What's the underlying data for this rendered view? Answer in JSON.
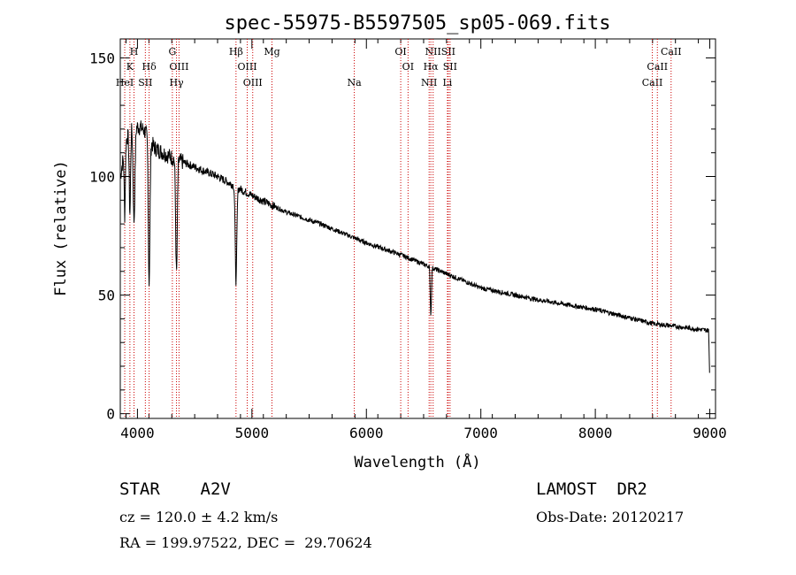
{
  "chart_data": {
    "type": "line",
    "title": "spec-55975-B5597505_sp05-069.fits",
    "xlabel": "Wavelength (Å)",
    "ylabel": "Flux (relative)",
    "xlim": [
      3850,
      9050
    ],
    "ylim": [
      -2,
      158
    ],
    "x_ticks": [
      {
        "value": 4000,
        "label": "4000"
      },
      {
        "value": 5000,
        "label": "5000"
      },
      {
        "value": 6000,
        "label": "6000"
      },
      {
        "value": 7000,
        "label": "7000"
      },
      {
        "value": 8000,
        "label": "8000"
      },
      {
        "value": 9000,
        "label": "9000"
      }
    ],
    "y_ticks": [
      {
        "value": 0,
        "label": "0"
      },
      {
        "value": 50,
        "label": "50"
      },
      {
        "value": 100,
        "label": "100"
      },
      {
        "value": 150,
        "label": "150"
      }
    ],
    "line_marks_color": "#cc0000",
    "lines": [
      {
        "name": "H",
        "wavelength": 3970,
        "row": 0
      },
      {
        "name": "K",
        "wavelength": 3934,
        "row": 1
      },
      {
        "name": "HeI",
        "wavelength": 3889,
        "row": 2
      },
      {
        "name": "SII",
        "wavelength": 4069,
        "row": 2
      },
      {
        "name": "Hδ",
        "wavelength": 4102,
        "row": 1
      },
      {
        "name": "G",
        "wavelength": 4305,
        "row": 0
      },
      {
        "name": "OIII",
        "wavelength": 4363,
        "row": 1
      },
      {
        "name": "Hγ",
        "wavelength": 4341,
        "row": 2
      },
      {
        "name": "Hβ",
        "wavelength": 4861,
        "row": 0
      },
      {
        "name": "OIII",
        "wavelength": 4959,
        "row": 1
      },
      {
        "name": "OIII",
        "wavelength": 5007,
        "row": 2
      },
      {
        "name": "Mg",
        "wavelength": 5175,
        "row": 0
      },
      {
        "name": "Na",
        "wavelength": 5894,
        "row": 2
      },
      {
        "name": "OI",
        "wavelength": 6300,
        "row": 0
      },
      {
        "name": "OI",
        "wavelength": 6364,
        "row": 1
      },
      {
        "name": "NII",
        "wavelength": 6548,
        "row": 2
      },
      {
        "name": "NII",
        "wavelength": 6583,
        "row": 0
      },
      {
        "name": "Hα",
        "wavelength": 6563,
        "row": 1
      },
      {
        "name": "SII",
        "wavelength": 6716,
        "row": 0
      },
      {
        "name": "SII",
        "wavelength": 6731,
        "row": 1
      },
      {
        "name": "Li",
        "wavelength": 6708,
        "row": 2
      },
      {
        "name": "CaII",
        "wavelength": 8498,
        "row": 2
      },
      {
        "name": "CaII",
        "wavelength": 8542,
        "row": 1
      },
      {
        "name": "CaII",
        "wavelength": 8662,
        "row": 0
      }
    ],
    "series": [
      {
        "name": "Flux",
        "continuum": [
          [
            3850,
            100
          ],
          [
            3900,
            115
          ],
          [
            3950,
            122
          ],
          [
            4050,
            120
          ],
          [
            4150,
            112
          ],
          [
            4300,
            108
          ],
          [
            4500,
            104
          ],
          [
            4700,
            100
          ],
          [
            5000,
            92
          ],
          [
            5300,
            85
          ],
          [
            5600,
            80
          ],
          [
            6000,
            72
          ],
          [
            6300,
            67
          ],
          [
            6600,
            61
          ],
          [
            6800,
            57
          ],
          [
            7000,
            53
          ],
          [
            7500,
            48
          ],
          [
            8000,
            44
          ],
          [
            8500,
            38
          ],
          [
            9000,
            35
          ]
        ],
        "absorption_features": [
          {
            "center": 3889,
            "depth": 28,
            "width": 5
          },
          {
            "center": 3934,
            "depth": 35,
            "width": 6
          },
          {
            "center": 3970,
            "depth": 40,
            "width": 8
          },
          {
            "center": 4102,
            "depth": 60,
            "width": 7
          },
          {
            "center": 4341,
            "depth": 48,
            "width": 7
          },
          {
            "center": 4861,
            "depth": 40,
            "width": 7
          },
          {
            "center": 6563,
            "depth": 20,
            "width": 5
          }
        ],
        "red_end_drop": {
          "start": 8990,
          "end": 9000,
          "to": 13
        }
      }
    ]
  },
  "info": {
    "object": "STAR    A2V",
    "survey": "LAMOST  DR2",
    "cz": "cz = 120.0 ± 4.2 km/s",
    "obs_date": "Obs-Date: 20120217",
    "coords": "RA = 199.97522, DEC =  29.70624"
  }
}
